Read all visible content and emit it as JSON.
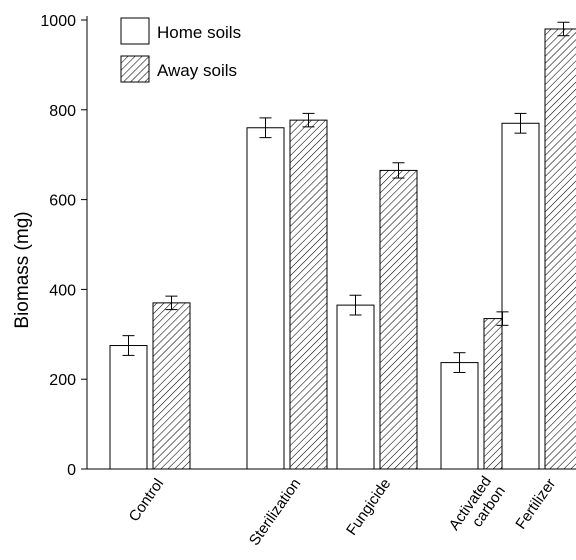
{
  "chart_data": {
    "type": "bar",
    "title": "",
    "xlabel": "",
    "ylabel": "Biomass (mg)",
    "ylim": [
      0,
      1000
    ],
    "yticks": [
      0,
      200,
      400,
      600,
      800,
      1000
    ],
    "categories": [
      [
        "Control"
      ],
      [
        "Sterilization"
      ],
      [
        "Fungicide"
      ],
      [
        "Activated",
        "carbon"
      ],
      [
        "Fertilizer"
      ]
    ],
    "series": [
      {
        "name": "Home soils",
        "fill": "open",
        "values": [
          275,
          760,
          365,
          237,
          770
        ],
        "errors": [
          22,
          22,
          22,
          22,
          22
        ]
      },
      {
        "name": "Away soils",
        "fill": "hatched",
        "values": [
          370,
          777,
          665,
          335,
          980
        ],
        "errors": [
          15,
          15,
          17,
          15,
          15
        ]
      }
    ],
    "error_bars": true,
    "grid": false,
    "legend_position": "top-left",
    "colors": {
      "axis": "#000000",
      "bar_stroke": "#000000",
      "home_fill": "#ffffff",
      "hatch": "#000000"
    }
  }
}
